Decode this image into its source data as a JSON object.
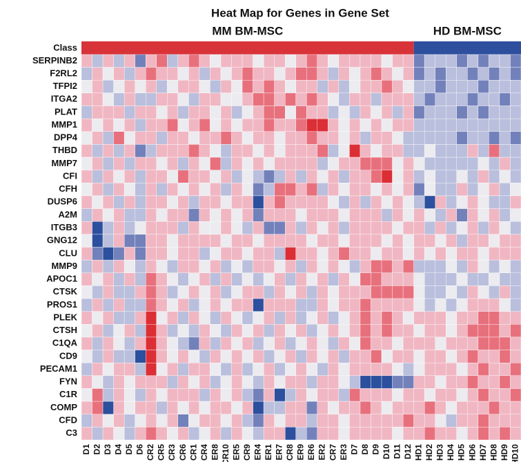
{
  "chart_data": {
    "type": "heatmap",
    "title": "Heat Map for Genes in Gene Set",
    "class_label": "Class",
    "groups": [
      {
        "label": "MM BM-MSC",
        "count": 31,
        "color": "#d9333a"
      },
      {
        "label": "HD BM-MSC",
        "count": 10,
        "color": "#2e4f9e"
      }
    ],
    "columns": [
      "D1",
      "D2",
      "D3",
      "D4",
      "D5",
      "D6",
      "CR2",
      "CR5",
      "CR3",
      "CR6",
      "CR1",
      "CR4",
      "ER8",
      "CR10",
      "ER5",
      "CR9",
      "ER4",
      "ER1",
      "ER7",
      "CR8",
      "ER9",
      "ER6",
      "ER2",
      "CR7",
      "ER3",
      "D7",
      "D8",
      "D9",
      "D10",
      "D11",
      "D12",
      "HD1",
      "HD2",
      "HD3",
      "HD4",
      "HD5",
      "HD6",
      "HD7",
      "HD8",
      "HD9",
      "HD10"
    ],
    "rows": [
      "SERPINB2",
      "F2RL2",
      "TFPI2",
      "ITGA2",
      "PLAT",
      "MMP1",
      "DPP4",
      "THBD",
      "MMP7",
      "CFI",
      "CFH",
      "DUSP6",
      "A2M",
      "ITGB3",
      "GNG12",
      "CLU",
      "MMP9",
      "APOC1",
      "CTSK",
      "PROS1",
      "PLEK",
      "CTSH",
      "C1QA",
      "CD9",
      "PECAM1",
      "FYN",
      "C1R",
      "COMP",
      "CFD",
      "C3"
    ],
    "zlim": [
      -3,
      3
    ],
    "colorscale": [
      "#2c4f9e",
      "#7381bb",
      "#b9bfdc",
      "#ecebf0",
      "#f0b7c3",
      "#e8707d",
      "#dc2e35"
    ],
    "values": [
      [
        1,
        -1,
        1,
        -1,
        1,
        -2,
        1,
        2,
        -1,
        1,
        2,
        1,
        0,
        1,
        1,
        1,
        0,
        1,
        1,
        0,
        1,
        2,
        1,
        0,
        1,
        1,
        1,
        1,
        0,
        1,
        1,
        -2,
        -1,
        -1,
        -1,
        -2,
        -1,
        -2,
        -1,
        -1,
        -2
      ],
      [
        -1,
        1,
        0,
        1,
        -1,
        1,
        2,
        1,
        1,
        0,
        1,
        -1,
        1,
        0,
        1,
        2,
        1,
        1,
        0,
        1,
        2,
        2,
        1,
        -1,
        1,
        0,
        1,
        2,
        1,
        0,
        1,
        -2,
        -1,
        -2,
        -1,
        -1,
        -2,
        -1,
        -2,
        -1,
        -2
      ],
      [
        0,
        1,
        -1,
        0,
        1,
        0,
        1,
        -1,
        0,
        1,
        1,
        0,
        -1,
        1,
        0,
        2,
        1,
        2,
        1,
        0,
        1,
        1,
        -1,
        1,
        -1,
        0,
        1,
        1,
        2,
        1,
        0,
        -1,
        -1,
        -2,
        -1,
        -1,
        -1,
        -2,
        -1,
        -1,
        -1
      ],
      [
        1,
        1,
        0,
        -1,
        1,
        -1,
        -1,
        1,
        1,
        0,
        -1,
        1,
        1,
        0,
        0,
        1,
        2,
        2,
        1,
        2,
        1,
        2,
        1,
        0,
        -1,
        1,
        1,
        -1,
        1,
        1,
        1,
        -1,
        -2,
        -1,
        -1,
        -1,
        -2,
        -1,
        -1,
        -2,
        -1
      ],
      [
        -1,
        1,
        1,
        1,
        -1,
        1,
        1,
        0,
        1,
        -1,
        1,
        1,
        0,
        1,
        -1,
        0,
        1,
        2,
        2,
        0,
        2,
        1,
        1,
        -1,
        0,
        -1,
        1,
        0,
        1,
        -1,
        1,
        -2,
        -1,
        -1,
        -1,
        -2,
        -1,
        -2,
        -1,
        -1,
        -1
      ],
      [
        1,
        0,
        1,
        0,
        1,
        -1,
        1,
        1,
        2,
        0,
        1,
        2,
        0,
        1,
        0,
        1,
        1,
        2,
        1,
        1,
        2,
        3,
        3,
        1,
        0,
        1,
        0,
        1,
        0,
        1,
        1,
        -1,
        -1,
        -1,
        -1,
        -1,
        -1,
        -1,
        -1,
        -1,
        -1
      ],
      [
        0,
        1,
        -1,
        2,
        0,
        1,
        1,
        -1,
        1,
        1,
        0,
        1,
        1,
        2,
        1,
        0,
        1,
        1,
        0,
        1,
        1,
        2,
        1,
        1,
        0,
        1,
        -1,
        1,
        1,
        0,
        -1,
        -1,
        -1,
        -1,
        -1,
        -2,
        -1,
        -1,
        -2,
        -1,
        -2
      ],
      [
        1,
        -1,
        1,
        -1,
        1,
        -2,
        -1,
        1,
        1,
        1,
        2,
        1,
        0,
        -1,
        1,
        1,
        0,
        1,
        0,
        1,
        1,
        1,
        2,
        -1,
        0,
        3,
        1,
        0,
        1,
        1,
        -1,
        -1,
        0,
        -1,
        -1,
        -1,
        1,
        -1,
        2,
        -1,
        -1
      ],
      [
        0,
        1,
        -1,
        1,
        -1,
        1,
        1,
        0,
        1,
        -1,
        1,
        0,
        2,
        -1,
        1,
        0,
        1,
        0,
        1,
        1,
        1,
        1,
        -1,
        0,
        1,
        1,
        2,
        2,
        2,
        0,
        1,
        0,
        -1,
        -1,
        -1,
        -1,
        -1,
        0,
        -1,
        1,
        -1
      ],
      [
        1,
        -1,
        1,
        0,
        1,
        -1,
        1,
        1,
        0,
        2,
        1,
        1,
        0,
        1,
        -1,
        0,
        -1,
        -2,
        -1,
        1,
        -1,
        1,
        0,
        1,
        -1,
        1,
        1,
        2,
        3,
        0,
        1,
        -1,
        0,
        -1,
        -1,
        0,
        -1,
        1,
        -1,
        0,
        -1
      ],
      [
        0,
        1,
        -1,
        1,
        0,
        -1,
        1,
        -1,
        1,
        0,
        1,
        0,
        1,
        -1,
        1,
        0,
        -2,
        -1,
        2,
        2,
        1,
        2,
        -1,
        1,
        0,
        1,
        1,
        0,
        1,
        0,
        1,
        -2,
        0,
        -1,
        -1,
        1,
        -1,
        0,
        1,
        -1,
        0
      ],
      [
        1,
        0,
        1,
        -1,
        1,
        -1,
        1,
        1,
        0,
        1,
        -1,
        1,
        1,
        0,
        1,
        1,
        -3,
        1,
        2,
        1,
        1,
        1,
        1,
        0,
        -1,
        1,
        -1,
        1,
        0,
        1,
        0,
        -1,
        -3,
        1,
        -1,
        0,
        1,
        0,
        -1,
        -1,
        1
      ],
      [
        -1,
        1,
        0,
        1,
        -1,
        -1,
        1,
        0,
        1,
        1,
        -2,
        1,
        0,
        1,
        0,
        1,
        -2,
        1,
        1,
        1,
        0,
        1,
        1,
        1,
        0,
        1,
        1,
        1,
        -1,
        1,
        0,
        1,
        0,
        -1,
        1,
        -2,
        1,
        0,
        1,
        -1,
        0
      ],
      [
        1,
        -3,
        -1,
        1,
        -1,
        0,
        1,
        1,
        1,
        -1,
        1,
        0,
        0,
        1,
        0,
        -1,
        1,
        -2,
        -2,
        1,
        -1,
        1,
        0,
        1,
        -1,
        1,
        1,
        1,
        1,
        0,
        1,
        1,
        -1,
        1,
        -1,
        0,
        1,
        -1,
        1,
        0,
        -1
      ],
      [
        0,
        -3,
        -1,
        1,
        -2,
        -2,
        1,
        1,
        0,
        1,
        1,
        1,
        1,
        0,
        1,
        1,
        0,
        1,
        1,
        1,
        1,
        0,
        1,
        1,
        0,
        1,
        1,
        1,
        0,
        1,
        0,
        1,
        1,
        0,
        1,
        -1,
        1,
        1,
        0,
        1,
        1
      ],
      [
        1,
        -2,
        -3,
        -2,
        1,
        -2,
        1,
        1,
        0,
        1,
        1,
        -1,
        0,
        1,
        1,
        0,
        1,
        1,
        -1,
        3,
        1,
        1,
        0,
        1,
        2,
        1,
        1,
        0,
        1,
        1,
        0,
        1,
        0,
        1,
        0,
        1,
        1,
        0,
        1,
        1,
        1
      ],
      [
        -1,
        1,
        -1,
        1,
        0,
        -1,
        1,
        0,
        -1,
        1,
        1,
        0,
        1,
        -1,
        0,
        -1,
        1,
        1,
        0,
        1,
        -1,
        1,
        0,
        1,
        0,
        -1,
        1,
        2,
        2,
        1,
        2,
        -1,
        -1,
        -1,
        0,
        -1,
        1,
        0,
        -1,
        0,
        -1
      ],
      [
        1,
        0,
        1,
        -1,
        1,
        -1,
        2,
        1,
        0,
        -1,
        0,
        1,
        -1,
        1,
        -1,
        0,
        -1,
        0,
        1,
        -1,
        1,
        0,
        1,
        -1,
        1,
        0,
        2,
        2,
        1,
        1,
        1,
        0,
        -1,
        -1,
        -1,
        0,
        -1,
        -1,
        0,
        -1,
        -1
      ],
      [
        0,
        -1,
        1,
        -1,
        -1,
        1,
        2,
        1,
        -1,
        0,
        1,
        0,
        1,
        -1,
        0,
        1,
        1,
        -1,
        1,
        0,
        1,
        -1,
        1,
        0,
        1,
        1,
        1,
        2,
        2,
        2,
        2,
        0,
        -1,
        -1,
        0,
        -1,
        1,
        0,
        -1,
        1,
        -1
      ],
      [
        -1,
        1,
        -1,
        1,
        -1,
        -1,
        2,
        1,
        0,
        1,
        -1,
        0,
        1,
        0,
        1,
        1,
        -3,
        1,
        1,
        1,
        -1,
        -1,
        1,
        0,
        1,
        1,
        2,
        1,
        1,
        1,
        1,
        0,
        -1,
        0,
        -1,
        0,
        1,
        1,
        1,
        0,
        -1
      ],
      [
        1,
        0,
        1,
        -1,
        -1,
        1,
        3,
        0,
        1,
        -1,
        1,
        0,
        -1,
        1,
        0,
        -1,
        0,
        1,
        -1,
        1,
        -1,
        0,
        1,
        -1,
        0,
        1,
        2,
        1,
        2,
        1,
        0,
        1,
        1,
        1,
        0,
        1,
        1,
        2,
        2,
        1,
        1
      ],
      [
        0,
        1,
        -1,
        0,
        1,
        -1,
        3,
        1,
        -1,
        0,
        -1,
        1,
        0,
        -1,
        1,
        0,
        1,
        -1,
        1,
        0,
        1,
        -1,
        0,
        1,
        0,
        1,
        2,
        1,
        2,
        1,
        1,
        0,
        1,
        1,
        0,
        1,
        2,
        2,
        2,
        1,
        2
      ],
      [
        1,
        -1,
        1,
        0,
        -1,
        1,
        3,
        1,
        0,
        -1,
        -2,
        1,
        -1,
        1,
        0,
        1,
        -1,
        0,
        1,
        -1,
        0,
        1,
        0,
        -1,
        1,
        0,
        2,
        1,
        1,
        0,
        1,
        1,
        1,
        0,
        1,
        1,
        1,
        2,
        2,
        2,
        1
      ],
      [
        0,
        -1,
        1,
        -1,
        -1,
        -3,
        3,
        1,
        0,
        1,
        0,
        -1,
        1,
        0,
        1,
        0,
        1,
        -1,
        0,
        1,
        -1,
        1,
        0,
        1,
        -1,
        1,
        1,
        2,
        0,
        1,
        1,
        0,
        1,
        1,
        0,
        1,
        2,
        1,
        1,
        2,
        1
      ],
      [
        -1,
        1,
        0,
        1,
        1,
        -1,
        3,
        0,
        1,
        -1,
        1,
        1,
        0,
        -1,
        1,
        -1,
        0,
        1,
        -1,
        0,
        1,
        0,
        -1,
        1,
        0,
        1,
        1,
        1,
        1,
        0,
        -1,
        0,
        1,
        1,
        1,
        0,
        1,
        2,
        1,
        1,
        2
      ],
      [
        1,
        0,
        -1,
        1,
        0,
        1,
        1,
        1,
        -1,
        1,
        0,
        1,
        -1,
        0,
        1,
        0,
        -1,
        1,
        0,
        1,
        1,
        -1,
        1,
        1,
        0,
        -1,
        -3,
        -3,
        -3,
        -2,
        -2,
        1,
        1,
        0,
        1,
        1,
        2,
        1,
        1,
        2,
        1
      ],
      [
        0,
        2,
        -1,
        1,
        0,
        -1,
        1,
        0,
        1,
        1,
        1,
        -1,
        1,
        0,
        1,
        -1,
        -2,
        1,
        -3,
        -1,
        1,
        0,
        1,
        1,
        -1,
        2,
        1,
        1,
        1,
        0,
        1,
        1,
        0,
        1,
        1,
        0,
        1,
        2,
        1,
        1,
        2
      ],
      [
        1,
        2,
        -3,
        1,
        0,
        1,
        1,
        -1,
        1,
        0,
        1,
        0,
        1,
        1,
        0,
        1,
        -3,
        -1,
        -1,
        1,
        1,
        -2,
        1,
        0,
        1,
        1,
        2,
        1,
        0,
        1,
        1,
        1,
        2,
        1,
        0,
        1,
        1,
        1,
        2,
        1,
        1
      ],
      [
        -1,
        1,
        0,
        1,
        -1,
        0,
        1,
        0,
        1,
        -2,
        0,
        1,
        1,
        0,
        1,
        -1,
        -2,
        1,
        0,
        1,
        1,
        -1,
        1,
        1,
        0,
        1,
        1,
        1,
        1,
        1,
        2,
        1,
        1,
        0,
        -1,
        1,
        1,
        2,
        1,
        1,
        1
      ],
      [
        1,
        -1,
        1,
        0,
        -1,
        1,
        2,
        1,
        0,
        1,
        -1,
        0,
        1,
        -1,
        1,
        0,
        -1,
        1,
        1,
        -3,
        -1,
        -2,
        1,
        1,
        0,
        1,
        1,
        1,
        1,
        0,
        1,
        1,
        2,
        1,
        1,
        0,
        1,
        2,
        1,
        2,
        1
      ]
    ]
  }
}
